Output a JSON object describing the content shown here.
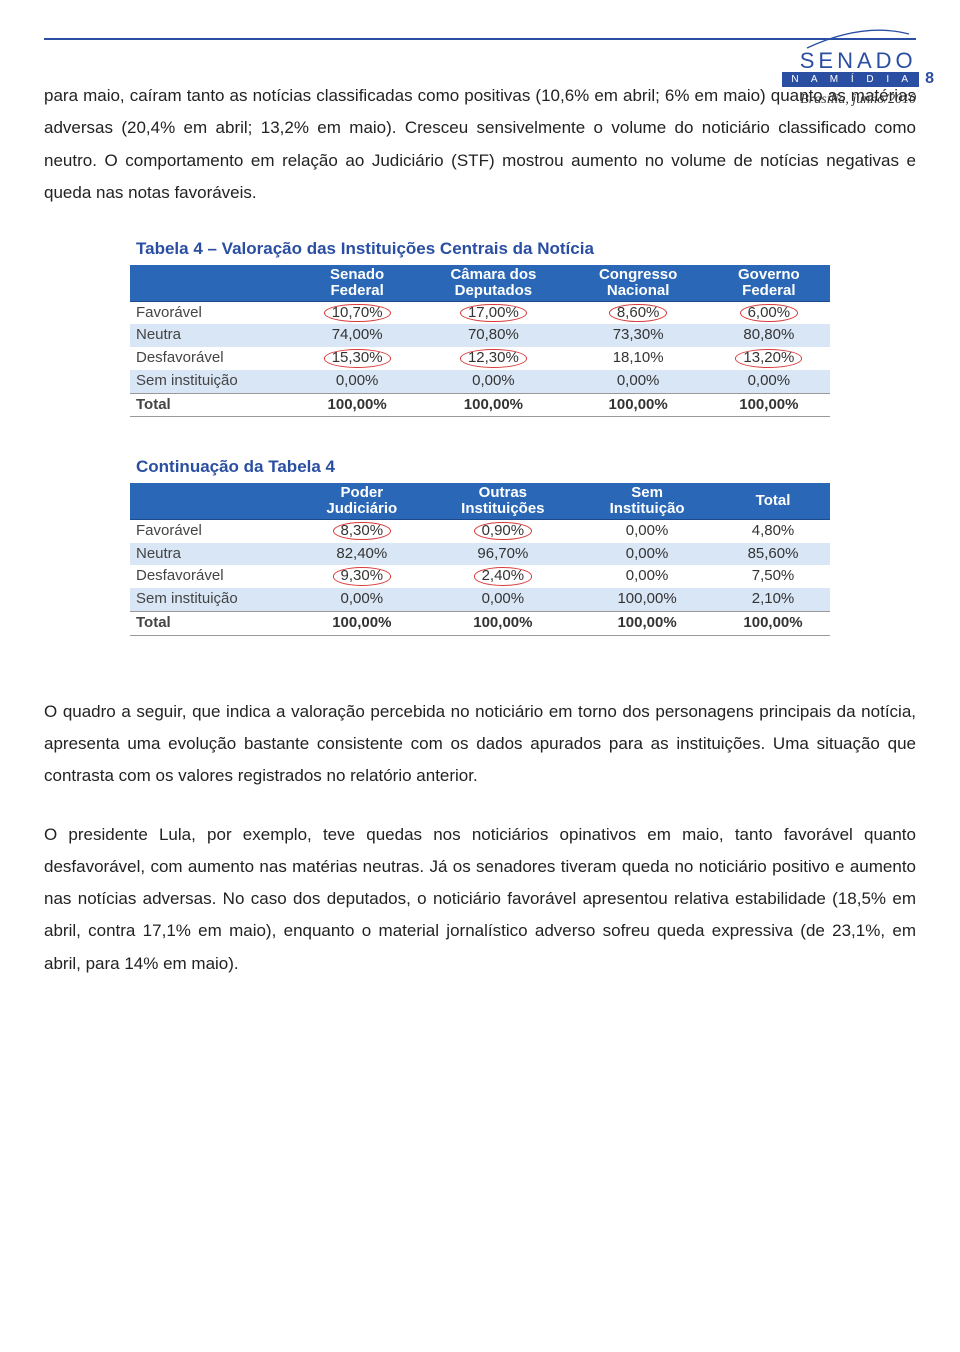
{
  "header": {
    "logo_text": "SENADO",
    "band_text": "N A   M Í D I A",
    "page_number": "8",
    "dateline": "Brasília, junho/2010"
  },
  "colors": {
    "brand_blue": "#2a4fa2",
    "header_blue": "#2a67b6",
    "row_alt": "#d9e6f5",
    "circle_red": "#d83a3a",
    "text": "#222222",
    "background": "#ffffff"
  },
  "paragraphs": {
    "p1": "para maio, caíram tanto as notícias classificadas como positivas (10,6% em abril; 6% em maio) quanto as matérias adversas (20,4% em abril; 13,2% em maio). Cresceu sensivelmente o volume do noticiário classificado como neutro. O comportamento em relação ao Judiciário (STF) mostrou aumento no volume de notícias negativas e queda nas notas favoráveis.",
    "p2": "O quadro a seguir, que indica a valoração percebida no noticiário em torno dos personagens principais da notícia, apresenta uma evolução bastante consistente com os dados apurados para as instituições. Uma situação que contrasta com os valores registrados  no relatório anterior.",
    "p3": "O presidente Lula, por exemplo, teve quedas nos noticiários opinativos em maio, tanto favorável quanto desfavorável, com aumento nas matérias neutras. Já os senadores tiveram queda no noticiário positivo e aumento nas notícias adversas. No caso dos deputados, o noticiário favorável apresentou relativa estabilidade (18,5% em abril, contra 17,1% em maio), enquanto o material jornalístico adverso sofreu queda expressiva (de 23,1%, em abril, para 14% em maio)."
  },
  "table4": {
    "title": "Tabela 4 – Valoração das Instituições Centrais da Notícia",
    "columns": [
      {
        "l1": "",
        "l2": ""
      },
      {
        "l1": "Senado",
        "l2": "Federal"
      },
      {
        "l1": "Câmara dos",
        "l2": "Deputados"
      },
      {
        "l1": "Congresso",
        "l2": "Nacional"
      },
      {
        "l1": "Governo",
        "l2": "Federal"
      }
    ],
    "rows": [
      {
        "label": "Favorável",
        "alt": false,
        "cells": [
          {
            "v": "10,70%",
            "c": true
          },
          {
            "v": "17,00%",
            "c": true
          },
          {
            "v": "8,60%",
            "c": true
          },
          {
            "v": "6,00%",
            "c": true
          }
        ]
      },
      {
        "label": "Neutra",
        "alt": true,
        "cells": [
          {
            "v": "74,00%",
            "c": false
          },
          {
            "v": "70,80%",
            "c": false
          },
          {
            "v": "73,30%",
            "c": false
          },
          {
            "v": "80,80%",
            "c": false
          }
        ]
      },
      {
        "label": "Desfavorável",
        "alt": false,
        "cells": [
          {
            "v": "15,30%",
            "c": true
          },
          {
            "v": "12,30%",
            "c": true
          },
          {
            "v": "18,10%",
            "c": false
          },
          {
            "v": "13,20%",
            "c": true
          }
        ]
      },
      {
        "label": "Sem instituição",
        "alt": true,
        "cells": [
          {
            "v": "0,00%",
            "c": false
          },
          {
            "v": "0,00%",
            "c": false
          },
          {
            "v": "0,00%",
            "c": false
          },
          {
            "v": "0,00%",
            "c": false
          }
        ]
      }
    ],
    "total": {
      "label": "Total",
      "cells": [
        "100,00%",
        "100,00%",
        "100,00%",
        "100,00%"
      ]
    }
  },
  "table4b": {
    "title": "Continuação da Tabela 4",
    "columns": [
      {
        "l1": "",
        "l2": ""
      },
      {
        "l1": "Poder",
        "l2": "Judiciário"
      },
      {
        "l1": "Outras",
        "l2": "Instituições"
      },
      {
        "l1": "Sem",
        "l2": "Instituição"
      },
      {
        "l1": "Total",
        "l2": ""
      }
    ],
    "rows": [
      {
        "label": "Favorável",
        "alt": false,
        "cells": [
          {
            "v": "8,30%",
            "c": true
          },
          {
            "v": "0,90%",
            "c": true
          },
          {
            "v": "0,00%",
            "c": false
          },
          {
            "v": "4,80%",
            "c": false
          }
        ]
      },
      {
        "label": "Neutra",
        "alt": true,
        "cells": [
          {
            "v": "82,40%",
            "c": false
          },
          {
            "v": "96,70%",
            "c": false
          },
          {
            "v": "0,00%",
            "c": false
          },
          {
            "v": "85,60%",
            "c": false
          }
        ]
      },
      {
        "label": "Desfavorável",
        "alt": false,
        "cells": [
          {
            "v": "9,30%",
            "c": true
          },
          {
            "v": "2,40%",
            "c": true
          },
          {
            "v": "0,00%",
            "c": false
          },
          {
            "v": "7,50%",
            "c": false
          }
        ]
      },
      {
        "label": "Sem instituição",
        "alt": true,
        "cells": [
          {
            "v": "0,00%",
            "c": false
          },
          {
            "v": "0,00%",
            "c": false
          },
          {
            "v": "100,00%",
            "c": false
          },
          {
            "v": "2,10%",
            "c": false
          }
        ]
      }
    ],
    "total": {
      "label": "Total",
      "cells": [
        "100,00%",
        "100,00%",
        "100,00%",
        "100,00%"
      ]
    }
  }
}
